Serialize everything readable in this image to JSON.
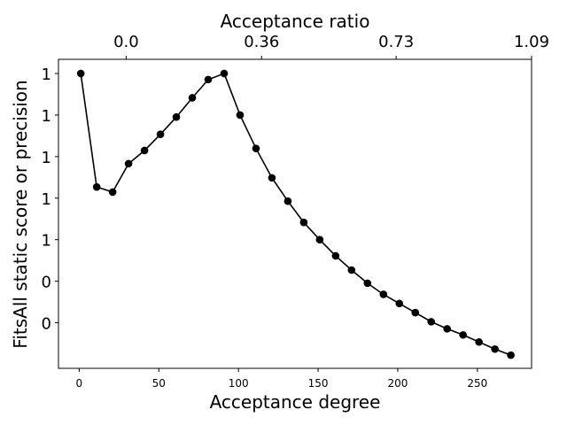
{
  "chart_data": {
    "type": "line",
    "xlabel": "Acceptance degree",
    "ylabel": "FitsAll static score or precision",
    "top_xlabel": "Acceptance ratio",
    "xlim": [
      -13,
      284
    ],
    "x_ticks": [
      0,
      50,
      100,
      150,
      200,
      250
    ],
    "top_ticks": [
      {
        "label": "0.0",
        "x": 29.5
      },
      {
        "label": "0.36",
        "x": 114.5
      },
      {
        "label": "0.73",
        "x": 199
      },
      {
        "label": "1.09",
        "x": 284
      }
    ],
    "ylim": [
      0.8,
      1.105
    ],
    "y_ticks": [
      {
        "label": "0",
        "y": 0.845
      },
      {
        "label": "0",
        "y": 0.886
      },
      {
        "label": "1",
        "y": 0.927
      },
      {
        "label": "1",
        "y": 0.968
      },
      {
        "label": "1",
        "y": 1.009
      },
      {
        "label": "1",
        "y": 1.05
      },
      {
        "label": "1",
        "y": 1.091
      }
    ],
    "grid": false,
    "series": [
      {
        "color": "#000000",
        "marker": "circle",
        "x": [
          1,
          11,
          21,
          31,
          41,
          51,
          61,
          71,
          81,
          91,
          101,
          111,
          121,
          131,
          141,
          151,
          161,
          171,
          181,
          191,
          201,
          211,
          221,
          231,
          241,
          251,
          261,
          271
        ],
        "y": [
          1.091,
          0.979,
          0.974,
          1.002,
          1.015,
          1.031,
          1.048,
          1.067,
          1.085,
          1.091,
          1.05,
          1.017,
          0.988,
          0.965,
          0.944,
          0.927,
          0.911,
          0.897,
          0.884,
          0.873,
          0.864,
          0.855,
          0.846,
          0.839,
          0.833,
          0.826,
          0.819,
          0.813
        ]
      }
    ]
  }
}
